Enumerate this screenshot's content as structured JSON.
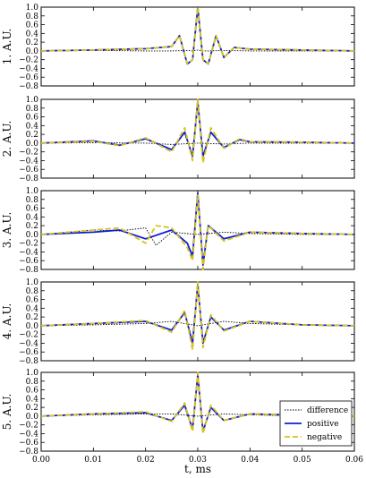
{
  "colors": {
    "difference": "#000000",
    "positive": "#0b1fd6",
    "negative": "#d9c21a"
  },
  "chart_data": {
    "type": "line",
    "xlabel": "t, ms",
    "xlim": [
      0.0,
      0.06
    ],
    "ylim": [
      -0.8,
      1.0
    ],
    "x_ticks": [
      "0.00",
      "0.01",
      "0.02",
      "0.03",
      "0.04",
      "0.05",
      "0.06"
    ],
    "y_ticks": [
      "1.0",
      "0.8",
      "0.6",
      "0.4",
      "0.2",
      "0.0",
      "−0.2",
      "−0.4",
      "−0.6",
      "−0.8"
    ],
    "legend": {
      "position": "bottom-right of panel 5",
      "entries": [
        "difference",
        "positive",
        "negative"
      ]
    },
    "panels": [
      {
        "ylabel": "1. A.U.",
        "series": [
          {
            "name": "difference",
            "style": "dotted",
            "x": [
              0.0,
              0.01,
              0.02,
              0.025,
              0.028,
              0.029,
              0.03,
              0.031,
              0.032,
              0.035,
              0.04,
              0.05,
              0.06
            ],
            "y": [
              0.0,
              0.01,
              0.0,
              0.0,
              0.01,
              0.0,
              0.02,
              0.0,
              0.0,
              0.01,
              0.0,
              0.0,
              0.0
            ]
          },
          {
            "name": "positive",
            "style": "solid",
            "x": [
              0.0,
              0.01,
              0.02,
              0.025,
              0.0265,
              0.028,
              0.029,
              0.03,
              0.031,
              0.032,
              0.0335,
              0.035,
              0.037,
              0.04,
              0.05,
              0.06
            ],
            "y": [
              0.0,
              0.02,
              0.05,
              0.1,
              0.35,
              -0.3,
              -0.2,
              1.0,
              -0.2,
              -0.3,
              0.35,
              -0.15,
              0.08,
              0.04,
              0.02,
              0.0
            ]
          },
          {
            "name": "negative",
            "style": "dashed",
            "x": [
              0.0,
              0.01,
              0.02,
              0.025,
              0.0265,
              0.028,
              0.029,
              0.03,
              0.031,
              0.032,
              0.0335,
              0.035,
              0.037,
              0.04,
              0.05,
              0.06
            ],
            "y": [
              0.0,
              0.02,
              0.05,
              0.1,
              0.35,
              -0.3,
              -0.2,
              1.0,
              -0.2,
              -0.3,
              0.35,
              -0.15,
              0.08,
              0.04,
              0.02,
              0.0
            ]
          }
        ]
      },
      {
        "ylabel": "2. A.U.",
        "series": [
          {
            "name": "difference",
            "style": "dotted",
            "x": [
              0.0,
              0.01,
              0.02,
              0.025,
              0.03,
              0.035,
              0.04,
              0.05,
              0.06
            ],
            "y": [
              0.0,
              0.01,
              0.0,
              -0.03,
              0.0,
              -0.02,
              0.0,
              0.0,
              0.0
            ]
          },
          {
            "name": "positive",
            "style": "solid",
            "x": [
              0.0,
              0.01,
              0.015,
              0.02,
              0.025,
              0.0275,
              0.029,
              0.03,
              0.031,
              0.0325,
              0.035,
              0.038,
              0.04,
              0.05,
              0.06
            ],
            "y": [
              0.0,
              0.05,
              -0.05,
              0.1,
              -0.15,
              0.25,
              -0.3,
              0.95,
              -0.3,
              0.25,
              -0.1,
              0.08,
              0.03,
              0.02,
              0.0
            ]
          },
          {
            "name": "negative",
            "style": "dashed",
            "x": [
              0.0,
              0.01,
              0.015,
              0.02,
              0.025,
              0.0275,
              0.029,
              0.03,
              0.031,
              0.0325,
              0.035,
              0.038,
              0.04,
              0.05,
              0.06
            ],
            "y": [
              0.0,
              0.04,
              -0.06,
              0.12,
              -0.2,
              0.35,
              -0.4,
              1.0,
              -0.45,
              0.35,
              -0.12,
              0.1,
              0.03,
              0.02,
              0.0
            ]
          }
        ]
      },
      {
        "ylabel": "3. A.U.",
        "series": [
          {
            "name": "difference",
            "style": "dotted",
            "x": [
              0.0,
              0.01,
              0.015,
              0.02,
              0.022,
              0.025,
              0.03,
              0.035,
              0.04,
              0.05,
              0.06
            ],
            "y": [
              0.0,
              0.1,
              0.08,
              0.15,
              -0.25,
              0.05,
              0.0,
              0.05,
              0.02,
              0.0,
              0.0
            ]
          },
          {
            "name": "positive",
            "style": "solid",
            "x": [
              0.0,
              0.01,
              0.015,
              0.02,
              0.025,
              0.028,
              0.029,
              0.03,
              0.031,
              0.032,
              0.035,
              0.04,
              0.05,
              0.06
            ],
            "y": [
              0.0,
              0.05,
              0.1,
              -0.1,
              0.1,
              -0.2,
              -0.5,
              0.95,
              -0.7,
              0.2,
              -0.1,
              0.05,
              0.02,
              0.0
            ]
          },
          {
            "name": "negative",
            "style": "dashed",
            "x": [
              0.0,
              0.01,
              0.015,
              0.02,
              0.022,
              0.025,
              0.028,
              0.029,
              0.03,
              0.031,
              0.032,
              0.035,
              0.04,
              0.05,
              0.06
            ],
            "y": [
              0.0,
              0.1,
              0.15,
              -0.2,
              0.2,
              0.15,
              -0.3,
              -0.6,
              0.9,
              -0.8,
              0.2,
              -0.15,
              0.05,
              0.02,
              0.0
            ]
          }
        ]
      },
      {
        "ylabel": "4. A.U.",
        "series": [
          {
            "name": "difference",
            "style": "dotted",
            "x": [
              0.0,
              0.01,
              0.02,
              0.025,
              0.03,
              0.035,
              0.04,
              0.05,
              0.06
            ],
            "y": [
              0.0,
              0.02,
              0.05,
              0.1,
              0.0,
              0.1,
              0.05,
              0.02,
              0.0
            ]
          },
          {
            "name": "positive",
            "style": "solid",
            "x": [
              0.0,
              0.01,
              0.02,
              0.025,
              0.0275,
              0.029,
              0.03,
              0.031,
              0.0325,
              0.035,
              0.04,
              0.05,
              0.06
            ],
            "y": [
              0.0,
              0.05,
              0.1,
              -0.1,
              0.3,
              -0.4,
              0.95,
              -0.4,
              0.2,
              -0.1,
              0.1,
              0.02,
              0.0
            ]
          },
          {
            "name": "negative",
            "style": "dashed",
            "x": [
              0.0,
              0.01,
              0.02,
              0.025,
              0.0275,
              0.029,
              0.03,
              0.031,
              0.0325,
              0.035,
              0.04,
              0.05,
              0.06
            ],
            "y": [
              0.0,
              0.05,
              0.12,
              -0.15,
              0.35,
              -0.55,
              1.0,
              -0.5,
              0.25,
              -0.12,
              0.1,
              0.02,
              0.0
            ]
          }
        ]
      },
      {
        "ylabel": "5. A.U.",
        "series": [
          {
            "name": "difference",
            "style": "dotted",
            "x": [
              0.0,
              0.01,
              0.02,
              0.025,
              0.03,
              0.035,
              0.04,
              0.05,
              0.06
            ],
            "y": [
              0.0,
              0.03,
              0.05,
              0.05,
              0.0,
              0.05,
              0.03,
              0.0,
              0.0
            ]
          },
          {
            "name": "positive",
            "style": "solid",
            "x": [
              0.0,
              0.01,
              0.02,
              0.025,
              0.0275,
              0.029,
              0.03,
              0.031,
              0.0325,
              0.035,
              0.04,
              0.05,
              0.06
            ],
            "y": [
              0.0,
              0.05,
              0.08,
              -0.1,
              0.25,
              -0.3,
              0.95,
              -0.35,
              0.2,
              -0.1,
              0.05,
              0.02,
              0.0
            ]
          },
          {
            "name": "negative",
            "style": "dashed",
            "x": [
              0.0,
              0.01,
              0.02,
              0.025,
              0.0275,
              0.029,
              0.03,
              0.031,
              0.0325,
              0.035,
              0.04,
              0.05,
              0.06
            ],
            "y": [
              0.0,
              0.05,
              0.1,
              -0.12,
              0.3,
              -0.35,
              1.0,
              -0.4,
              0.25,
              -0.1,
              0.05,
              0.02,
              0.0
            ]
          }
        ]
      }
    ]
  }
}
